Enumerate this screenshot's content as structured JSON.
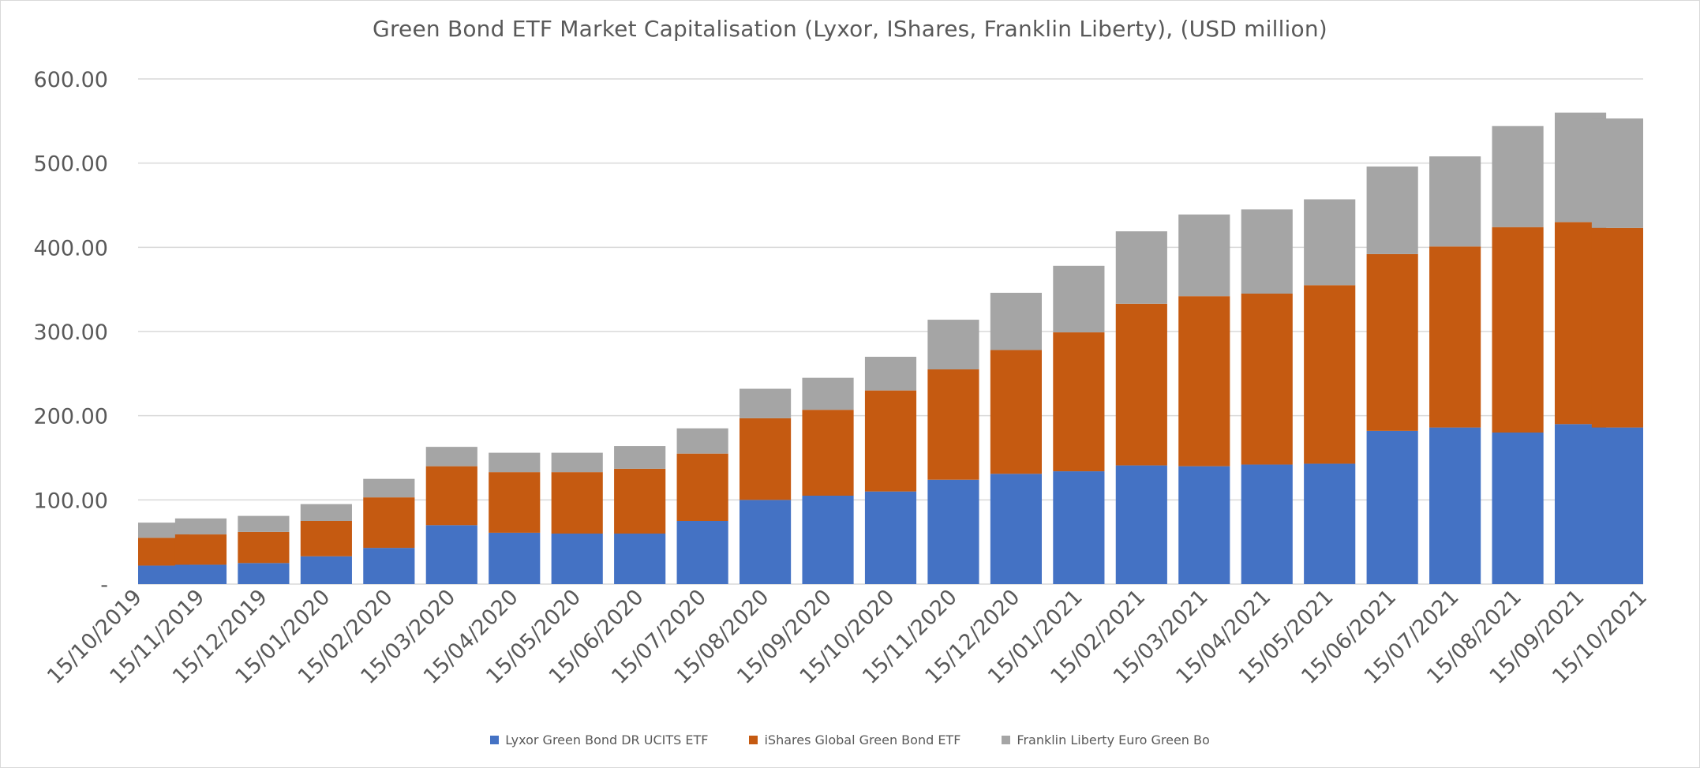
{
  "chart_data": {
    "type": "bar",
    "stacked": true,
    "title": "Green Bond ETF Market Capitalisation (Lyxor, IShares, Franklin Liberty), (USD million)",
    "xlabel": "",
    "ylabel": "",
    "ylim": [
      0,
      600
    ],
    "y_ticks": [
      "-",
      "100.00",
      "200.00",
      "300.00",
      "400.00",
      "500.00",
      "600.00"
    ],
    "y_tick_values": [
      0,
      100,
      200,
      300,
      400,
      500,
      600
    ],
    "grid": true,
    "legend_position": "bottom",
    "x_tick_labels": [
      "15/10/2019",
      "15/11/2019",
      "15/12/2019",
      "15/01/2020",
      "15/02/2020",
      "15/03/2020",
      "15/04/2020",
      "15/05/2020",
      "15/06/2020",
      "15/07/2020",
      "15/08/2020",
      "15/09/2020",
      "15/10/2020",
      "15/11/2020",
      "15/12/2020",
      "15/01/2021",
      "15/02/2021",
      "15/03/2021",
      "15/04/2021",
      "15/05/2021",
      "15/06/2021",
      "15/07/2021",
      "15/08/2021",
      "15/09/2021",
      "15/10/2021"
    ],
    "categories": [
      "15/10/2019",
      "15/11/2019",
      "15/12/2019",
      "15/01/2020",
      "15/02/2020",
      "15/03/2020",
      "15/04/2020",
      "15/05/2020",
      "15/06/2020",
      "15/07/2020",
      "15/08/2020",
      "15/09/2020",
      "15/10/2020",
      "15/11/2020",
      "15/12/2020",
      "15/01/2021",
      "15/02/2021",
      "15/03/2021",
      "15/04/2021",
      "15/05/2021",
      "15/06/2021",
      "15/07/2021",
      "15/08/2021",
      "15/09/2021",
      "15/10/2021"
    ],
    "series": [
      {
        "name": "Lyxor Green Bond DR UCITS ETF",
        "color": "#4472c4",
        "values": [
          22,
          23,
          25,
          33,
          43,
          70,
          61,
          60,
          60,
          75,
          100,
          105,
          110,
          124,
          131,
          134,
          141,
          140,
          142,
          143,
          182,
          186,
          180,
          190,
          186
        ]
      },
      {
        "name": "iShares Global Green Bond ETF",
        "color": "#c55a11",
        "values": [
          33,
          36,
          37,
          42,
          60,
          70,
          72,
          73,
          77,
          80,
          97,
          102,
          120,
          131,
          147,
          165,
          192,
          202,
          203,
          212,
          210,
          215,
          244,
          240,
          237
        ]
      },
      {
        "name": "Franklin Liberty Euro Green Bo",
        "color": "#a5a5a5",
        "values": [
          18,
          19,
          19,
          20,
          22,
          23,
          23,
          23,
          27,
          30,
          35,
          38,
          40,
          59,
          68,
          79,
          86,
          97,
          100,
          102,
          104,
          107,
          120,
          130,
          130
        ]
      }
    ]
  }
}
